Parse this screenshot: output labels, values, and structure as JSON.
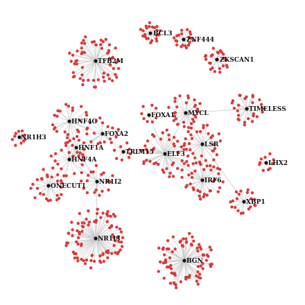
{
  "hubs": [
    {
      "id": "BCL3",
      "label": "BCL3"
    },
    {
      "id": "ZNF444",
      "label": "ZNF444"
    },
    {
      "id": "ZKSCAN1",
      "label": "ZKSCAN1"
    },
    {
      "id": "TFB2M",
      "label": "TFB2M"
    },
    {
      "id": "HNF4G",
      "label": "HNF4G"
    },
    {
      "id": "NR1H3",
      "label": "NR1H3"
    },
    {
      "id": "FOXA2",
      "label": "FOXA2"
    },
    {
      "id": "HNF1A",
      "label": "HNF1A"
    },
    {
      "id": "HNF4A",
      "label": "HNF4A"
    },
    {
      "id": "TRIM15",
      "label": "TRIM15"
    },
    {
      "id": "ONECUT1",
      "label": "ONECUT1"
    },
    {
      "id": "NR1I2",
      "label": "NR1I2"
    },
    {
      "id": "NR1I3",
      "label": "NR1I3"
    },
    {
      "id": "FOXA1",
      "label": "FOXA1"
    },
    {
      "id": "MYCL",
      "label": "MYCL"
    },
    {
      "id": "TIMELESS",
      "label": "TIMELESS"
    },
    {
      "id": "ELF3",
      "label": "ELF3"
    },
    {
      "id": "LSR",
      "label": "LSR"
    },
    {
      "id": "LHX2",
      "label": "LHX2"
    },
    {
      "id": "IRF6",
      "label": "IRF6"
    },
    {
      "id": "XBP1",
      "label": "XBP1"
    },
    {
      "id": "BGN",
      "label": "BGN"
    }
  ],
  "hub_links": [
    [
      "HNF4G",
      "FOXA2"
    ],
    [
      "HNF4G",
      "HNF1A"
    ],
    [
      "HNF4G",
      "HNF4A"
    ],
    [
      "HNF1A",
      "FOXA2"
    ],
    [
      "HNF4A",
      "FOXA2"
    ],
    [
      "HNF1A",
      "HNF4A"
    ],
    [
      "HNF4A",
      "NR1I2"
    ],
    [
      "HNF1A",
      "NR1I2"
    ],
    [
      "NR1I2",
      "NR1I3"
    ],
    [
      "ONECUT1",
      "HNF4A"
    ],
    [
      "TRIM15",
      "FOXA2"
    ],
    [
      "TRIM15",
      "ELF3"
    ],
    [
      "ELF3",
      "FOXA1"
    ],
    [
      "ELF3",
      "MYCL"
    ],
    [
      "ELF3",
      "LSR"
    ],
    [
      "ELF3",
      "IRF6"
    ],
    [
      "LSR",
      "IRF6"
    ],
    [
      "LSR",
      "XBP1"
    ],
    [
      "MYCL",
      "LSR"
    ],
    [
      "MYCL",
      "TIMELESS"
    ],
    [
      "FOXA2",
      "HNF4A"
    ]
  ],
  "colors": {
    "leaf": "#d93b3b",
    "hub": "#111111",
    "edge": "#c8c8c8"
  }
}
